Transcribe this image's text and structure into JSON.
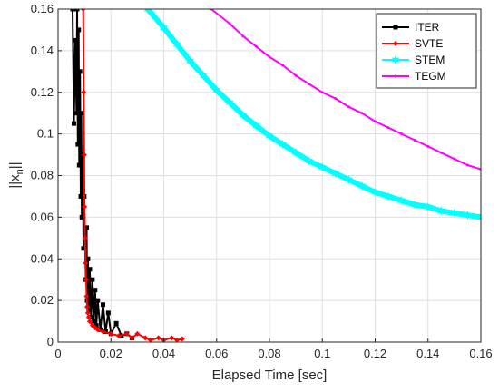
{
  "chart_data": {
    "type": "line",
    "xlabel": "Elapsed Time [sec]",
    "ylabel": "||x_n||",
    "ylabel_main": "||x",
    "ylabel_sub": "n",
    "ylabel_tail": "||",
    "xlim": [
      0,
      0.16
    ],
    "ylim": [
      0,
      0.16
    ],
    "grid": true,
    "legend_position": "top-right",
    "x_ticks": [
      "0",
      "0.02",
      "0.04",
      "0.06",
      "0.08",
      "0.1",
      "0.12",
      "0.14",
      "0.16"
    ],
    "y_ticks": [
      "0",
      "0.02",
      "0.04",
      "0.06",
      "0.08",
      "0.1",
      "0.12",
      "0.14",
      "0.16"
    ],
    "series": [
      {
        "name": "ITER",
        "color": "#000000",
        "marker": "square",
        "x": [
          0.0055,
          0.006,
          0.0065,
          0.007,
          0.0072,
          0.0075,
          0.0078,
          0.008,
          0.0083,
          0.0086,
          0.0088,
          0.009,
          0.0093,
          0.0096,
          0.0099,
          0.0102,
          0.0105,
          0.0108,
          0.011,
          0.0113,
          0.0116,
          0.012,
          0.0125,
          0.013,
          0.0135,
          0.014,
          0.0145,
          0.015,
          0.016,
          0.017,
          0.018,
          0.019,
          0.02,
          0.022,
          0.024,
          0.026,
          0.028
        ],
        "y": [
          0.16,
          0.105,
          0.145,
          0.11,
          0.16,
          0.095,
          0.15,
          0.085,
          0.13,
          0.07,
          0.11,
          0.06,
          0.09,
          0.045,
          0.07,
          0.05,
          0.03,
          0.055,
          0.02,
          0.04,
          0.015,
          0.035,
          0.012,
          0.03,
          0.01,
          0.025,
          0.008,
          0.02,
          0.006,
          0.018,
          0.005,
          0.014,
          0.004,
          0.009,
          0.003,
          0.004,
          0.002
        ]
      },
      {
        "name": "SVTE",
        "color": "#ff0000",
        "marker": "diamond",
        "x": [
          0.0095,
          0.0097,
          0.0099,
          0.01,
          0.0102,
          0.0104,
          0.0106,
          0.0108,
          0.011,
          0.0113,
          0.0116,
          0.012,
          0.013,
          0.014,
          0.015,
          0.017,
          0.02,
          0.023,
          0.026,
          0.028,
          0.03,
          0.033,
          0.035,
          0.038,
          0.04,
          0.043,
          0.045,
          0.047
        ],
        "y": [
          0.16,
          0.12,
          0.09,
          0.065,
          0.05,
          0.038,
          0.03,
          0.022,
          0.017,
          0.014,
          0.012,
          0.01,
          0.008,
          0.007,
          0.006,
          0.005,
          0.004,
          0.003,
          0.004,
          0.002,
          0.004,
          0.002,
          0.001,
          0.002,
          0.001,
          0.002,
          0.001,
          0.0015
        ]
      },
      {
        "name": "STEM",
        "color": "#00ffff",
        "marker": "hexagram",
        "x": [
          0.034,
          0.04,
          0.045,
          0.05,
          0.055,
          0.06,
          0.065,
          0.07,
          0.075,
          0.08,
          0.085,
          0.09,
          0.095,
          0.1,
          0.105,
          0.11,
          0.115,
          0.12,
          0.125,
          0.13,
          0.135,
          0.14,
          0.145,
          0.15,
          0.155,
          0.16
        ],
        "y": [
          0.16,
          0.151,
          0.143,
          0.135,
          0.128,
          0.121,
          0.115,
          0.109,
          0.104,
          0.099,
          0.095,
          0.091,
          0.087,
          0.084,
          0.081,
          0.078,
          0.075,
          0.072,
          0.07,
          0.068,
          0.066,
          0.065,
          0.063,
          0.062,
          0.061,
          0.06
        ]
      },
      {
        "name": "TEGM",
        "color": "#ff00ff",
        "marker": "point",
        "x": [
          0.058,
          0.065,
          0.07,
          0.075,
          0.08,
          0.085,
          0.09,
          0.095,
          0.1,
          0.105,
          0.11,
          0.115,
          0.12,
          0.125,
          0.13,
          0.135,
          0.14,
          0.145,
          0.15,
          0.155,
          0.16
        ],
        "y": [
          0.16,
          0.153,
          0.147,
          0.142,
          0.137,
          0.133,
          0.128,
          0.124,
          0.12,
          0.117,
          0.113,
          0.11,
          0.106,
          0.103,
          0.1,
          0.097,
          0.094,
          0.091,
          0.088,
          0.085,
          0.083
        ]
      }
    ]
  }
}
